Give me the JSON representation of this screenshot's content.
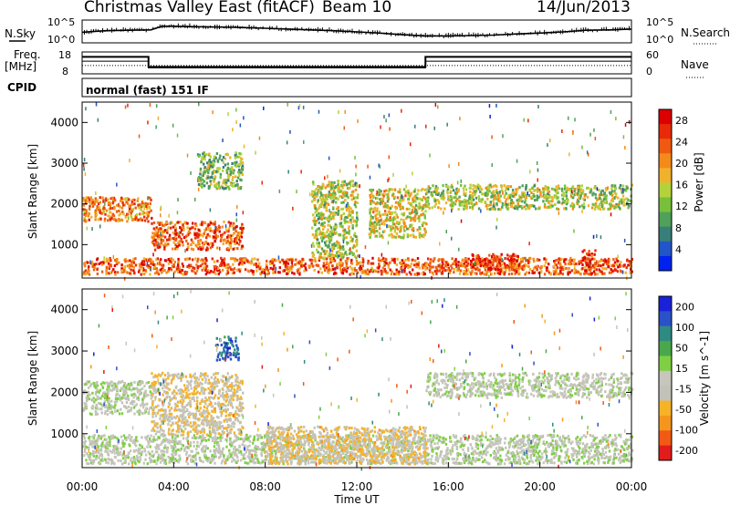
{
  "header": {
    "station": "Christmas Valley East (fitACF)",
    "beam": "Beam 10",
    "date": "14/Jun/2013"
  },
  "noise_panel": {
    "left_label": "N.Sky",
    "left_ticks": [
      "10^5",
      "10^0"
    ],
    "right_label": "N.Search",
    "right_ticks": [
      "10^5",
      "10^0"
    ]
  },
  "freq_panel": {
    "left_label_1": "Freq.",
    "left_label_2": "[MHz]",
    "left_ticks": [
      "18",
      "8"
    ],
    "right_label": "Nave",
    "right_ticks": [
      "60",
      "0"
    ]
  },
  "cpid": {
    "label": "CPID",
    "mode": "normal (fast) 151 IF"
  },
  "x_axis": {
    "label": "Time UT",
    "ticks": [
      "00:00",
      "04:00",
      "08:00",
      "12:00",
      "16:00",
      "20:00",
      "00:00"
    ]
  },
  "colors": {
    "power": [
      "#0022ee",
      "#2255c8",
      "#3a7e7a",
      "#4fa05a",
      "#78bf3c",
      "#b4d23a",
      "#f0b22c",
      "#f48a1a",
      "#f05a10",
      "#e82a08",
      "#dd0000"
    ],
    "velocity": [
      "#e21c1c",
      "#f15a14",
      "#f5961c",
      "#f6b328",
      "#c2c2b8",
      "#c6c6bc",
      "#7fcf44",
      "#4aa84a",
      "#2f8a82",
      "#2a52c8",
      "#1a22d8"
    ]
  },
  "chart_data": [
    {
      "type": "line",
      "title": "",
      "xlabel": "",
      "ylabel": "N.Sky",
      "y2label": "N.Search",
      "scale": "log",
      "x_hours": [
        0,
        1,
        2,
        3,
        3.5,
        4,
        5,
        6,
        7,
        8,
        9,
        10,
        11,
        12,
        13,
        14,
        15,
        16,
        17,
        18,
        19,
        20,
        21,
        22,
        23,
        24
      ],
      "series": [
        {
          "values_log10": [
            2.4,
            2.8,
            2.9,
            3.0,
            3.9,
            3.9,
            3.8,
            3.7,
            3.6,
            3.4,
            3.2,
            3.0,
            2.8,
            2.5,
            2.2,
            1.8,
            1.5,
            1.5,
            1.6,
            1.7,
            2.0,
            2.2,
            2.5,
            2.9,
            3.0,
            3.2
          ]
        }
      ],
      "ylim": [
        0,
        5
      ]
    },
    {
      "type": "line",
      "title": "",
      "xlabel": "",
      "ylabel": "Freq. [MHz]",
      "y2label": "Nave",
      "ylim": [
        8,
        18
      ],
      "y2lim": [
        0,
        60
      ],
      "series": [
        {
          "x_hours": [
            0,
            2.9,
            2.9,
            15.0,
            15.0,
            24
          ],
          "values": [
            16,
            16,
            11,
            11,
            16,
            16
          ]
        },
        {
          "x_hours": [
            0,
            24
          ],
          "values_y2": [
            22,
            22
          ]
        },
        {
          "x_hours": [
            0,
            2.9,
            2.9,
            15.0,
            15.0,
            24
          ],
          "values_y2": [
            35,
            35,
            15,
            15,
            35,
            35
          ]
        }
      ]
    },
    {
      "type": "heatmap",
      "title": "",
      "xlabel": "",
      "ylabel": "Slant Range [km]",
      "xlim": [
        0,
        24
      ],
      "ylim": [
        180,
        4500
      ],
      "yticks": [
        1000,
        2000,
        3000,
        4000
      ],
      "colorbar": {
        "label": "Power [dB]",
        "ticks": [
          28,
          24,
          20,
          16,
          12,
          8,
          4
        ],
        "range": [
          0,
          30
        ]
      },
      "features": [
        {
          "name": "near-range band",
          "x_hours": [
            0,
            24
          ],
          "range_km": [
            300,
            700
          ],
          "power_db": 24
        },
        {
          "name": "morning E-region echo",
          "x_hours": [
            0,
            3
          ],
          "range_km": [
            1600,
            2200
          ],
          "power_db": 22
        },
        {
          "name": "0400-0600 layer",
          "x_hours": [
            3,
            7
          ],
          "range_km": [
            900,
            1600
          ],
          "power_db": 24
        },
        {
          "name": "0500-0700 high-range patch",
          "x_hours": [
            5,
            7
          ],
          "range_km": [
            2400,
            3300
          ],
          "power_db": 12
        },
        {
          "name": "1000-1200 descending streak",
          "x_hours": [
            10,
            12
          ],
          "range_km": [
            700,
            2600
          ],
          "power_db": 14
        },
        {
          "name": "1400-1500 oblique streaks",
          "x_hours": [
            12.5,
            15
          ],
          "range_km": [
            1200,
            2400
          ],
          "power_db": 16
        },
        {
          "name": "1700-1900 near range",
          "x_hours": [
            17,
            19
          ],
          "range_km": [
            400,
            800
          ],
          "power_db": 26
        },
        {
          "name": "1600-2400 far band",
          "x_hours": [
            15,
            24
          ],
          "range_km": [
            1900,
            2500
          ],
          "power_db": 14
        },
        {
          "name": "2200 isolated patch",
          "x_hours": [
            21.8,
            22.4
          ],
          "range_km": [
            300,
            900
          ],
          "power_db": 28
        }
      ]
    },
    {
      "type": "heatmap",
      "title": "",
      "xlabel": "Time UT",
      "ylabel": "Slant Range [km]",
      "xlim": [
        0,
        24
      ],
      "ylim": [
        180,
        4500
      ],
      "yticks": [
        1000,
        2000,
        3000,
        4000
      ],
      "colorbar": {
        "label": "Velocity [m s^-1]",
        "ticks": [
          200,
          100,
          50,
          15,
          -15,
          -50,
          -100,
          -200
        ],
        "range": [
          -250,
          250
        ]
      },
      "features": [
        {
          "name": "ground scatter near range",
          "x_hours": [
            0,
            24
          ],
          "range_km": [
            300,
            1000
          ],
          "velocity": 0
        },
        {
          "name": "morning ground scatter",
          "x_hours": [
            0,
            3
          ],
          "range_km": [
            1500,
            2300
          ],
          "velocity": 0
        },
        {
          "name": "0400-0600 mixed",
          "x_hours": [
            3,
            7
          ],
          "range_km": [
            1000,
            2500
          ],
          "velocity": -60
        },
        {
          "name": "0600 positive patch",
          "x_hours": [
            5.8,
            6.8
          ],
          "range_km": [
            2800,
            3400
          ],
          "velocity": 180
        },
        {
          "name": "0800-1400 negative band",
          "x_hours": [
            8,
            15
          ],
          "range_km": [
            300,
            1200
          ],
          "velocity": -70
        },
        {
          "name": "1600-2400 far ground scatter",
          "x_hours": [
            15,
            24
          ],
          "range_km": [
            1900,
            2500
          ],
          "velocity": 0
        }
      ]
    }
  ]
}
